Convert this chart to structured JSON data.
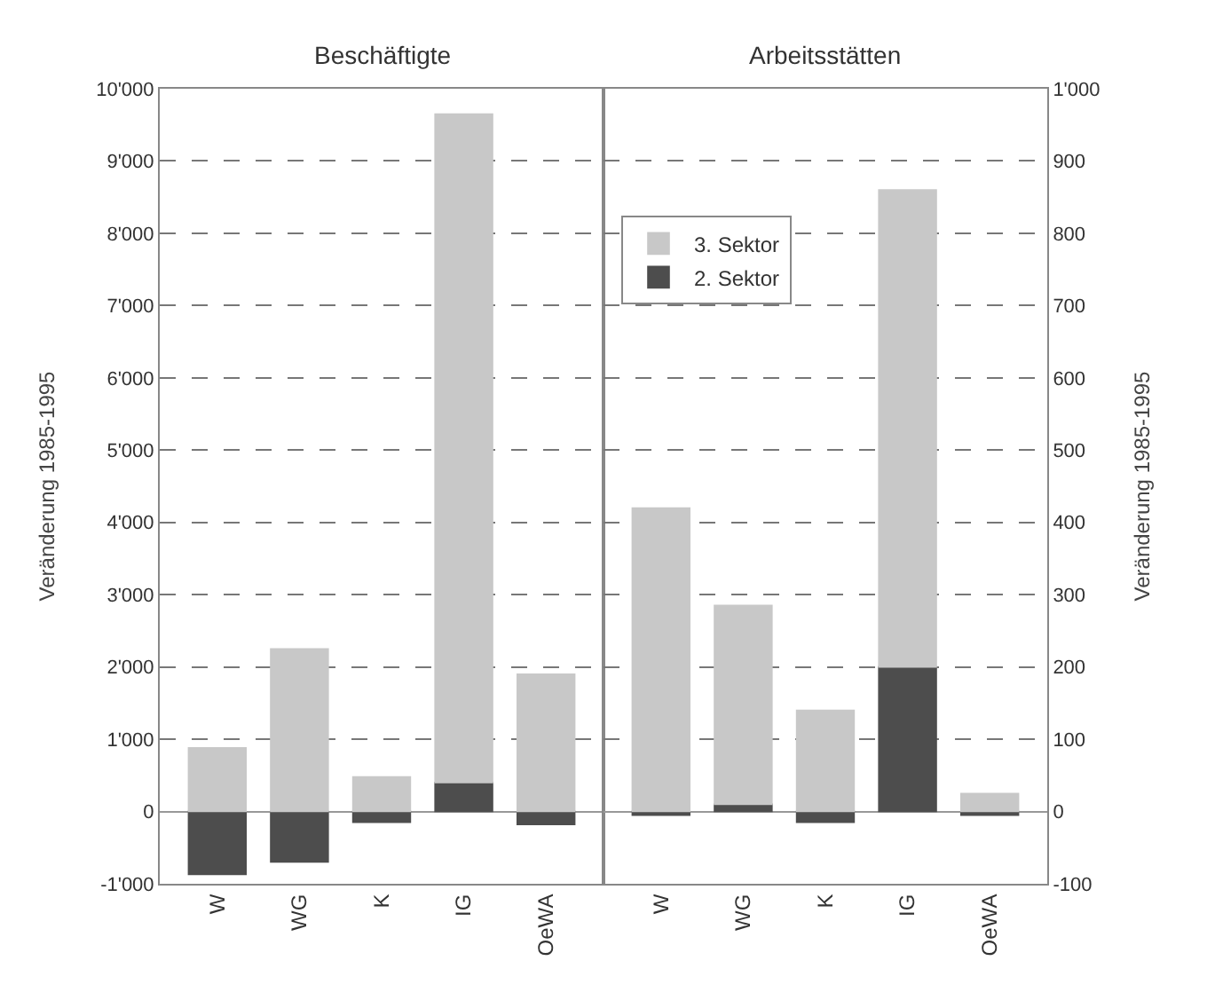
{
  "chart_data": [
    {
      "type": "bar",
      "title": "Beschäftigte",
      "ylabel": "Veränderung 1985-1995",
      "stacked": true,
      "grid": "y",
      "categories": [
        "W",
        "WG",
        "K",
        "IG",
        "OeWA"
      ],
      "series": [
        {
          "color": "#4d4d4d",
          "values": [
            -870,
            -700,
            -150,
            400,
            -180
          ]
        },
        {
          "color": "#c8c8c8",
          "values": [
            880,
            2250,
            480,
            9250,
            1900
          ]
        }
      ],
      "ylim": [
        -1000,
        10000
      ],
      "yticks": [
        {
          "value": -1000,
          "label": "-1'000"
        },
        0,
        {
          "value": 1000,
          "label": "1'000"
        },
        {
          "value": 2000,
          "label": "2'000"
        },
        {
          "value": 3000,
          "label": "3'000"
        },
        {
          "value": 4000,
          "label": "4'000"
        },
        {
          "value": 5000,
          "label": "5'000"
        },
        {
          "value": 6000,
          "label": "6'000"
        },
        {
          "value": 7000,
          "label": "7'000"
        },
        {
          "value": 8000,
          "label": "8'000"
        },
        {
          "value": 9000,
          "label": "9'000"
        },
        {
          "value": 10000,
          "label": "10'000"
        }
      ]
    },
    {
      "type": "bar",
      "title": "Arbeitsstätten",
      "ylabel": "Veränderung 1985-1995",
      "stacked": true,
      "grid": "y",
      "legend": "top left",
      "categories": [
        "W",
        "WG",
        "K",
        "IG",
        "OeWA"
      ],
      "series": [
        {
          "name": "2. Sektor",
          "color": "#4d4d4d",
          "values": [
            -5,
            10,
            -15,
            200,
            -5
          ]
        },
        {
          "name": "3. Sektor",
          "color": "#c8c8c8",
          "values": [
            420,
            275,
            140,
            660,
            25
          ]
        }
      ],
      "ylim": [
        -100,
        1000
      ],
      "yticks": [
        -100,
        0,
        100,
        200,
        300,
        400,
        500,
        600,
        700,
        800,
        900,
        {
          "value": 1000,
          "label": "1'000"
        }
      ]
    }
  ]
}
